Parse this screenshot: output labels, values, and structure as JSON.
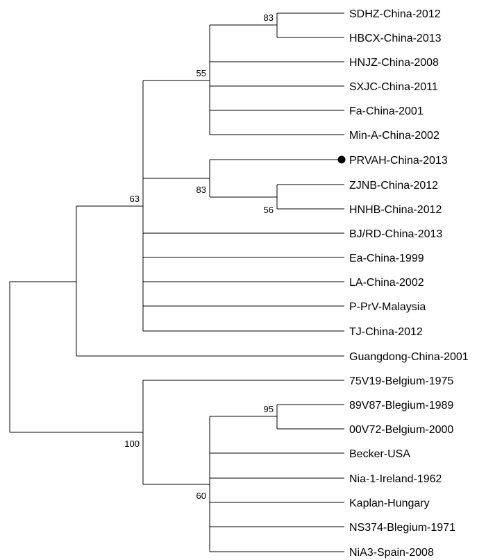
{
  "taxa": {
    "SDHZ": "SDHZ-China-2012",
    "HBCX": "HBCX-China-2013",
    "HNJZ": "HNJZ-China-2008",
    "SXJC": "SXJC-China-2011",
    "Fa": "Fa-China-2001",
    "MinA": "Min-A-China-2002",
    "PRVAH": "PRVAH-China-2013",
    "ZJNB": "ZJNB-China-2012",
    "HNHB": "HNHB-China-2012",
    "BJRD": "BJ/RD-China-2013",
    "Ea": "Ea-China-1999",
    "LA": "LA-China-2002",
    "PPrV": "P-PrV-Malaysia",
    "TJ": "TJ-China-2012",
    "Guangdong": "Guangdong-China-2001",
    "V75": "75V19-Belgium-1975",
    "V89": "89V87-Blegium-1989",
    "V00": "00V72-Belgium-2000",
    "Becker": "Becker-USA",
    "Nia1": "Nia-1-Ireland-1962",
    "Kaplan": "Kaplan-Hungary",
    "NS374": "NS374-Blegium-1971",
    "NiA3": "NiA3-Spain-2008"
  },
  "bootstrap": {
    "sdhz_hbcx": "83",
    "china_clade_a": "55",
    "prvah_clade": "83",
    "zjnb_hnhb": "56",
    "chinese_group": "63",
    "euro_group": "100",
    "v89_v00": "95",
    "euro_subclade": "60"
  },
  "marker": {
    "highlighted_taxon": "PRVAH-China-2013",
    "color": "#000000"
  }
}
